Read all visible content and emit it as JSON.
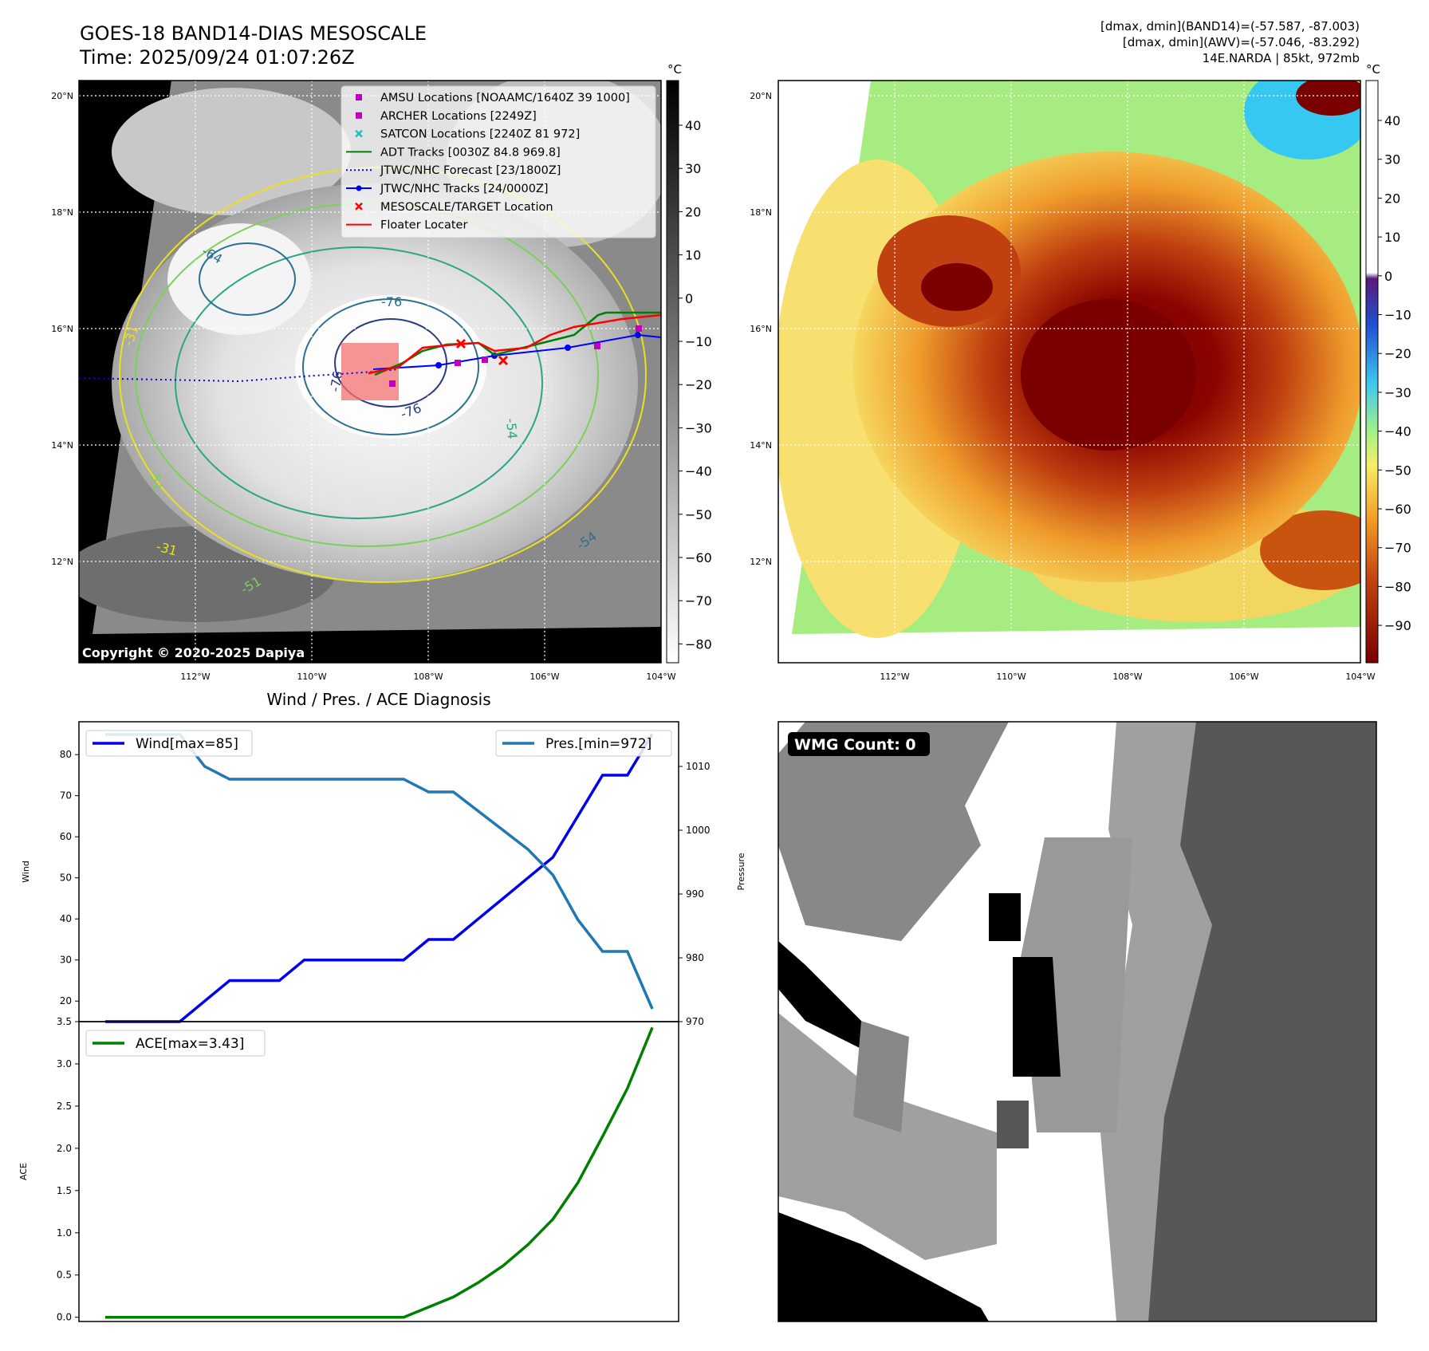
{
  "header": {
    "title_line1": "GOES-18 BAND14-DIAS MESOSCALE",
    "title_line2": "Time: 2025/09/24 01:07:26Z",
    "right_line1": "[dmax, dmin](BAND14)=(-57.587, -87.003)",
    "right_line2": "[dmax, dmin](AWV)=(-57.046, -83.292)",
    "right_line3": "14E.NARDA | 85kt, 972mb"
  },
  "maps": {
    "lat_ticks": [
      "20°N",
      "18°N",
      "16°N",
      "14°N",
      "12°N"
    ],
    "lon_ticks": [
      "112°W",
      "110°W",
      "108°W",
      "106°W",
      "104°W"
    ],
    "copyright": "Copyright © 2020-2025 Dapiya",
    "contour_labels": [
      "-64",
      "-76",
      "-76",
      "-51",
      "-31",
      "-54",
      "-54",
      "-31",
      "-51",
      "-76"
    ],
    "unit": "°C"
  },
  "legend_map": [
    {
      "label": "AMSU Locations [NOAAMC/1640Z 39 1000]",
      "marker": "square",
      "color": "#c000c0"
    },
    {
      "label": "ARCHER Locations [2249Z]",
      "marker": "square",
      "color": "#c000c0"
    },
    {
      "label": "SATCON Locations [2240Z 81 972]",
      "marker": "x",
      "color": "#20c0c0"
    },
    {
      "label": "ADT Tracks [0030Z 84.8 969.8]",
      "marker": "line",
      "color": "#008000"
    },
    {
      "label": "JTWC/NHC Forecast [23/1800Z]",
      "marker": "dotted",
      "color": "#0000ff"
    },
    {
      "label": "JTWC/NHC Tracks [24/0000Z]",
      "marker": "line-dot",
      "color": "#0000ff"
    },
    {
      "label": "MESOSCALE/TARGET Location",
      "marker": "x",
      "color": "#ff0000"
    },
    {
      "label": "Floater Locater",
      "marker": "line",
      "color": "#ff0000"
    }
  ],
  "colorbar1": {
    "ticks": [
      "40",
      "30",
      "20",
      "10",
      "0",
      "−10",
      "−20",
      "−30",
      "−40",
      "−50",
      "−60",
      "−70",
      "−80"
    ]
  },
  "colorbar2": {
    "ticks": [
      "40",
      "30",
      "20",
      "10",
      "0",
      "−10",
      "−20",
      "−30",
      "−40",
      "−50",
      "−60",
      "−70",
      "−80",
      "−90"
    ]
  },
  "wmg": {
    "label": "WMG Count: 0"
  },
  "chart_data": [
    {
      "type": "line",
      "title": "Wind / Pres. / ACE Diagnosis",
      "ylabel": "Wind",
      "y2label": "Pressure",
      "ylim": [
        15,
        88
      ],
      "y2lim": [
        970,
        1017
      ],
      "yticks": [
        20,
        30,
        40,
        50,
        60,
        70,
        80
      ],
      "y2ticks": [
        970,
        980,
        990,
        1000,
        1010
      ],
      "grid": false,
      "legend": [
        "top-left",
        "top-right"
      ],
      "series": [
        {
          "name": "Wind[max=85]",
          "color": "#0000ee",
          "axis": "left",
          "values": [
            15,
            15,
            15,
            15,
            20,
            25,
            25,
            25,
            30,
            30,
            30,
            30,
            30,
            35,
            35,
            40,
            45,
            50,
            55,
            65,
            75,
            75,
            85
          ]
        },
        {
          "name": "Pres.[min=972]",
          "color": "#1f77b4",
          "axis": "right",
          "values": [
            1015,
            1015,
            1015,
            1015,
            1010,
            1008,
            1008,
            1008,
            1008,
            1008,
            1008,
            1008,
            1008,
            1006,
            1006,
            1003,
            1000,
            997,
            993,
            986,
            981,
            981,
            972
          ]
        }
      ]
    },
    {
      "type": "line",
      "ylabel": "ACE",
      "ylim": [
        -0.05,
        3.5
      ],
      "yticks": [
        "0.0",
        "0.5",
        "1.0",
        "1.5",
        "2.0",
        "2.5",
        "3.0",
        "3.5"
      ],
      "grid": false,
      "legend": "top-left",
      "series": [
        {
          "name": "ACE[max=3.43]",
          "color": "#008000",
          "values": [
            0,
            0,
            0,
            0,
            0,
            0,
            0,
            0,
            0,
            0,
            0,
            0,
            0,
            0.12,
            0.24,
            0.41,
            0.61,
            0.86,
            1.16,
            1.59,
            2.14,
            2.71,
            3.43
          ]
        }
      ]
    }
  ]
}
